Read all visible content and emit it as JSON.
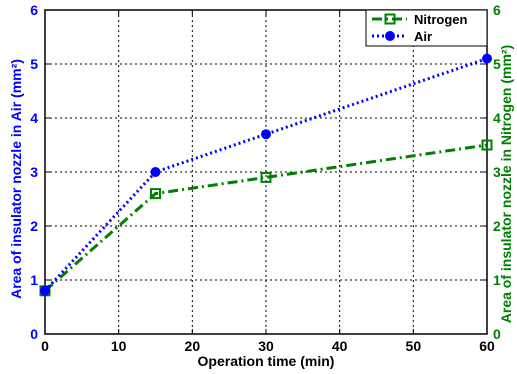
{
  "chart_data": {
    "type": "line",
    "title": "",
    "xlabel": "Operation time (min)",
    "ylabel_left": "Area of insulator nozzle in Air (mm²)",
    "ylabel_right": "Area of insulator nozzle in Nitrogen (mm²)",
    "xlim": [
      0,
      60
    ],
    "ylim_left": [
      0,
      6
    ],
    "ylim_right": [
      0,
      6
    ],
    "x_ticks": [
      "0",
      "10",
      "20",
      "30",
      "40",
      "50",
      "60"
    ],
    "y_ticks_left": [
      "0",
      "1",
      "2",
      "3",
      "4",
      "5",
      "6"
    ],
    "y_ticks_right": [
      "0",
      "1",
      "2",
      "3",
      "4",
      "5",
      "6"
    ],
    "grid": true,
    "legend_position": "top-right",
    "series": [
      {
        "name": "Nitrogen",
        "axis": "right",
        "color": "#008000",
        "line_style": "dash-dot",
        "marker": "square",
        "x": [
          0,
          15,
          30,
          60
        ],
        "y": [
          0.8,
          2.6,
          2.9,
          3.5
        ]
      },
      {
        "name": "Air",
        "axis": "left",
        "color": "#0000ff",
        "line_style": "dotted",
        "marker": "circle",
        "x": [
          0,
          15,
          30,
          60
        ],
        "y": [
          0.8,
          3.0,
          3.7,
          5.1
        ]
      }
    ]
  }
}
